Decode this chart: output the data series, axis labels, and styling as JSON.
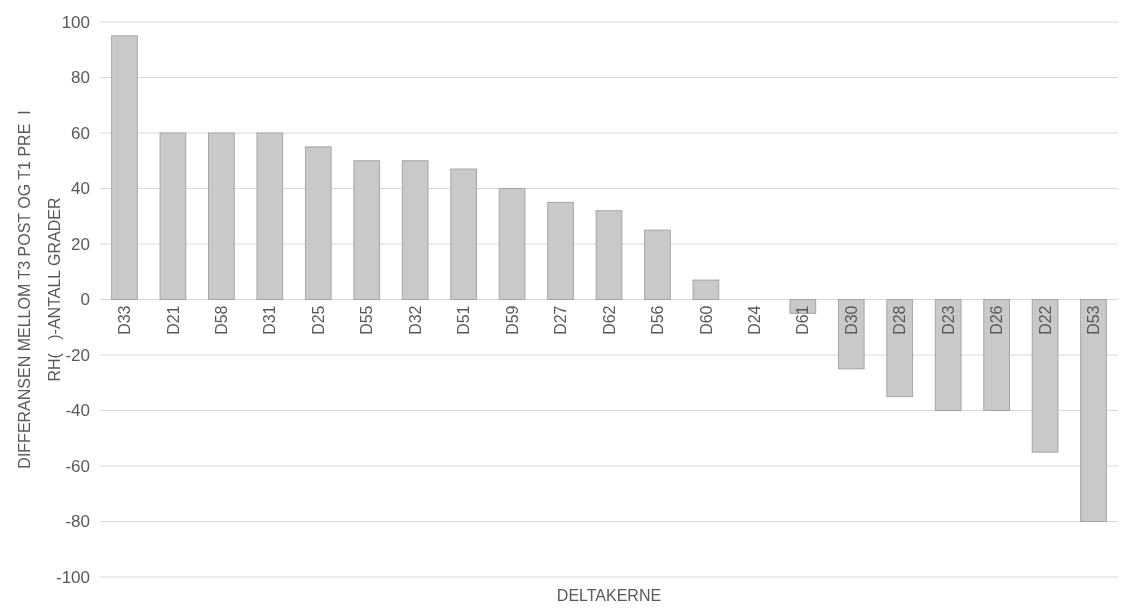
{
  "chart_data": {
    "type": "bar",
    "categories": [
      "D33",
      "D21",
      "D58",
      "D31",
      "D25",
      "D55",
      "D32",
      "D51",
      "D59",
      "D27",
      "D62",
      "D56",
      "D60",
      "D24",
      "D61",
      "D30",
      "D28",
      "D23",
      "D26",
      "D22",
      "D53"
    ],
    "values": [
      95,
      60,
      60,
      60,
      55,
      50,
      50,
      47,
      40,
      35,
      32,
      25,
      7,
      0,
      -5,
      -25,
      -35,
      -40,
      -40,
      -55,
      -80
    ],
    "color": "#c9c9c9",
    "xlabel": "DELTAKERNE",
    "ylabel": "DIFFERANSEN MELLOM T3 POST OG T1 PRE  I\nRH(   )-ANTALL GRADER",
    "ylim": [
      -100,
      100
    ],
    "yticks": [
      -100,
      -80,
      -60,
      -40,
      -20,
      0,
      20,
      40,
      60,
      80,
      100
    ],
    "grid": "y"
  }
}
